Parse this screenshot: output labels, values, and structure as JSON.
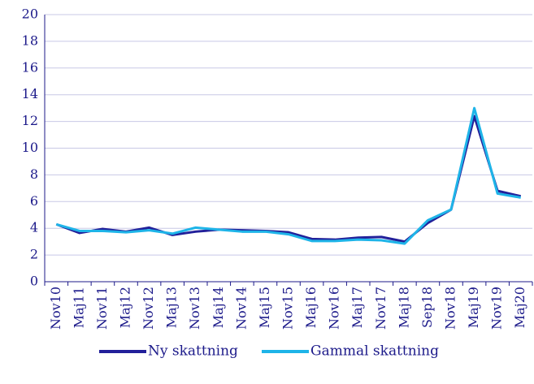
{
  "chart_data": {
    "type": "line",
    "categories": [
      "Nov10",
      "Maj11",
      "Nov11",
      "Maj12",
      "Nov12",
      "Maj13",
      "Nov13",
      "Maj14",
      "Nov14",
      "Maj15",
      "Nov15",
      "Maj16",
      "Nov16",
      "Maj17",
      "Nov17",
      "Maj18",
      "Sep18",
      "Nov18",
      "Maj19",
      "Nov19",
      "Maj20"
    ],
    "series": [
      {
        "name": "Ny skattning",
        "color": "#22209a",
        "values": [
          4.3,
          3.65,
          3.95,
          3.75,
          4.05,
          3.5,
          3.75,
          3.9,
          3.85,
          3.8,
          3.7,
          3.2,
          3.15,
          3.3,
          3.35,
          3.0,
          4.4,
          5.4,
          12.4,
          6.8,
          6.4
        ]
      },
      {
        "name": "Gammal skattning",
        "color": "#1eb4e8",
        "values": [
          4.3,
          3.8,
          3.8,
          3.7,
          3.85,
          3.6,
          4.05,
          3.9,
          3.75,
          3.75,
          3.55,
          3.05,
          3.05,
          3.15,
          3.1,
          2.85,
          4.6,
          5.4,
          13.0,
          6.6,
          6.3
        ]
      }
    ],
    "ylim": [
      0,
      20
    ],
    "yticks": [
      0,
      2,
      4,
      6,
      8,
      10,
      12,
      14,
      16,
      18,
      20
    ],
    "grid": true,
    "legend": "bottom"
  }
}
